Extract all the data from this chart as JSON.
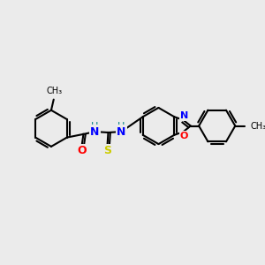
{
  "background_color": "#ebebeb",
  "bond_color": "#000000",
  "bond_lw": 1.5,
  "atom_colors": {
    "O": "#ff0000",
    "S": "#cccc00",
    "N": "#0000ff",
    "H": "#008080",
    "C": "#000000"
  },
  "font_size": 8,
  "fig_size": [
    3.0,
    3.0
  ],
  "dpi": 100
}
